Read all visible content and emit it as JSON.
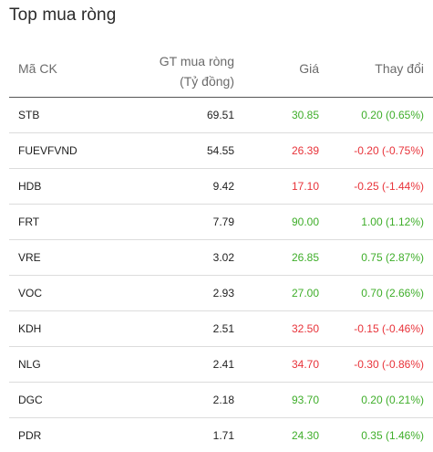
{
  "widget": {
    "title": "Top mua ròng",
    "columns": {
      "symbol": "Mã CK",
      "value_line1": "GT mua ròng",
      "value_line2": "(Tỷ đồng)",
      "price": "Giá",
      "change": "Thay đổi"
    },
    "colors": {
      "up": "#3fae2a",
      "down": "#e8333a"
    },
    "rows": [
      {
        "symbol": "STB",
        "value": "69.51",
        "price": "30.85",
        "change": "0.20 (0.65%)",
        "direction": "up"
      },
      {
        "symbol": "FUEVFVND",
        "value": "54.55",
        "price": "26.39",
        "change": "-0.20 (-0.75%)",
        "direction": "down"
      },
      {
        "symbol": "HDB",
        "value": "9.42",
        "price": "17.10",
        "change": "-0.25 (-1.44%)",
        "direction": "down"
      },
      {
        "symbol": "FRT",
        "value": "7.79",
        "price": "90.00",
        "change": "1.00 (1.12%)",
        "direction": "up"
      },
      {
        "symbol": "VRE",
        "value": "3.02",
        "price": "26.85",
        "change": "0.75 (2.87%)",
        "direction": "up"
      },
      {
        "symbol": "VOC",
        "value": "2.93",
        "price": "27.00",
        "change": "0.70 (2.66%)",
        "direction": "up"
      },
      {
        "symbol": "KDH",
        "value": "2.51",
        "price": "32.50",
        "change": "-0.15 (-0.46%)",
        "direction": "down"
      },
      {
        "symbol": "NLG",
        "value": "2.41",
        "price": "34.70",
        "change": "-0.30 (-0.86%)",
        "direction": "down"
      },
      {
        "symbol": "DGC",
        "value": "2.18",
        "price": "93.70",
        "change": "0.20 (0.21%)",
        "direction": "up"
      },
      {
        "symbol": "PDR",
        "value": "1.71",
        "price": "24.30",
        "change": "0.35 (1.46%)",
        "direction": "up"
      }
    ]
  }
}
